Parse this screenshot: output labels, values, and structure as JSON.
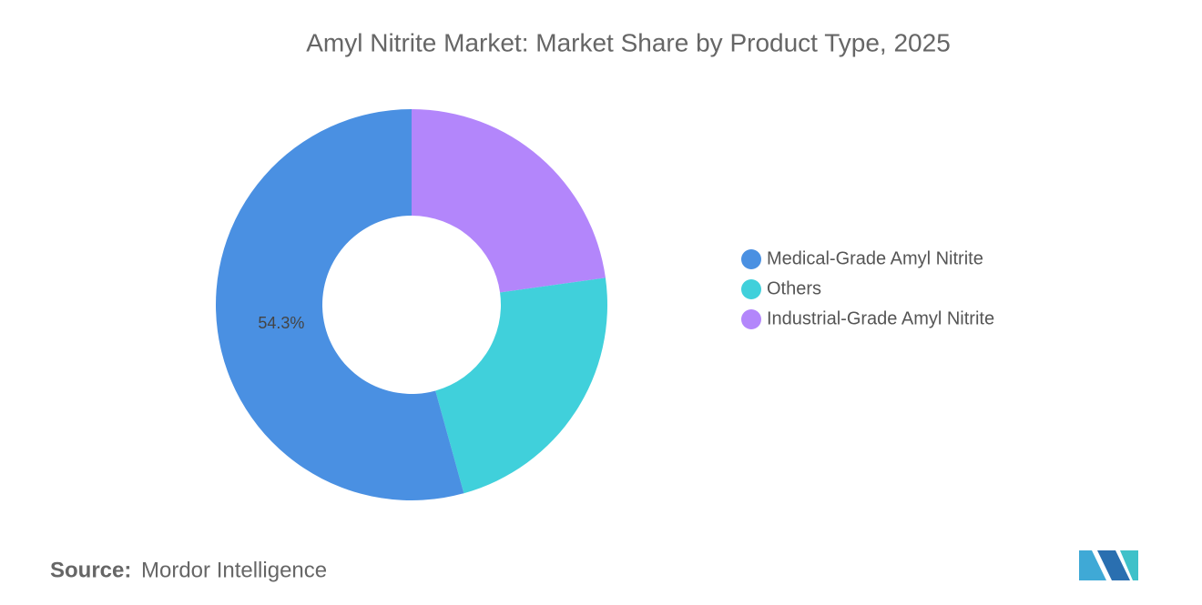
{
  "chart_data": {
    "type": "donut",
    "title": "Amyl Nitrite Market: Market Share by Product Type, 2025",
    "series": [
      {
        "name": "Medical-Grade Amyl Nitrite",
        "color": "#4a90e2"
      },
      {
        "name": "Others",
        "color": "#40d0db"
      },
      {
        "name": "Industrial-Grade Amyl Nitrite",
        "color": "#b386fb"
      }
    ],
    "values": [
      54.3,
      22.9,
      22.8
    ],
    "value_labels": [
      "54.3%",
      null,
      null
    ],
    "legend": "right"
  },
  "source_label": "Source:",
  "source": "Mordor Intelligence"
}
